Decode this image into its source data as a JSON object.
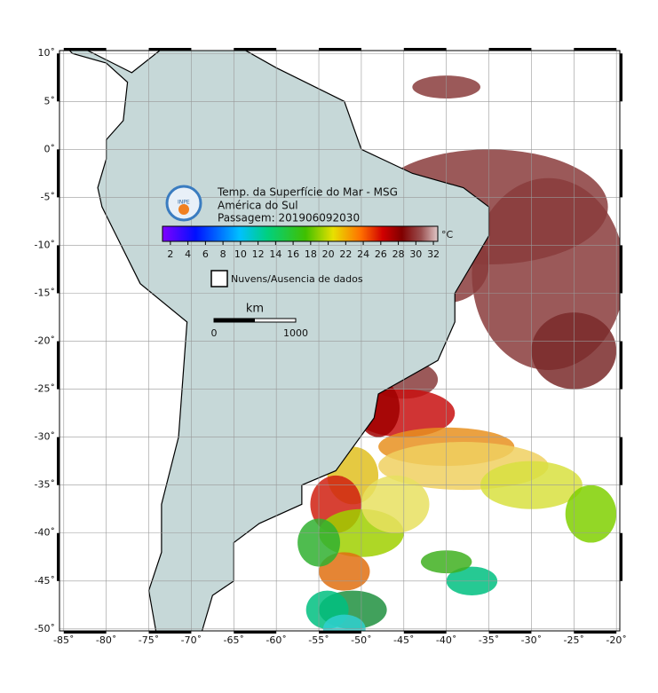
{
  "map": {
    "title": "Temp. da Superfície do Mar - MSG",
    "region": "América do Sul",
    "pass": "Passagem: 201906092030",
    "logo": "INPE",
    "xlim": [
      -85.5,
      -19.6
    ],
    "ylim": [
      -50.2,
      10.3
    ],
    "xticks": [
      {
        "value": -85,
        "label": "-85˚"
      },
      {
        "value": -80,
        "label": "-80˚"
      },
      {
        "value": -75,
        "label": "-75˚"
      },
      {
        "value": -70,
        "label": "-70˚"
      },
      {
        "value": -65,
        "label": "-65˚"
      },
      {
        "value": -60,
        "label": "-60˚"
      },
      {
        "value": -55,
        "label": "-55˚"
      },
      {
        "value": -50,
        "label": "-50˚"
      },
      {
        "value": -45,
        "label": "-45˚"
      },
      {
        "value": -40,
        "label": "-40˚"
      },
      {
        "value": -35,
        "label": "-35˚"
      },
      {
        "value": -30,
        "label": "-30˚"
      },
      {
        "value": -25,
        "label": "-25˚"
      },
      {
        "value": -20,
        "label": "-20˚"
      }
    ],
    "yticks": [
      {
        "value": 10,
        "label": "10˚"
      },
      {
        "value": 5,
        "label": "5˚"
      },
      {
        "value": 0,
        "label": "0˚"
      },
      {
        "value": -5,
        "label": "-5˚"
      },
      {
        "value": -10,
        "label": "-10˚"
      },
      {
        "value": -15,
        "label": "-15˚"
      },
      {
        "value": -20,
        "label": "-20˚"
      },
      {
        "value": -25,
        "label": "-25˚"
      },
      {
        "value": -30,
        "label": "-30˚"
      },
      {
        "value": -35,
        "label": "-35˚"
      },
      {
        "value": -40,
        "label": "-40˚"
      },
      {
        "value": -45,
        "label": "-45˚"
      },
      {
        "value": -50,
        "label": "-50˚"
      }
    ],
    "grid": true,
    "colorbar": {
      "lim": [
        1.1,
        32.5
      ],
      "ticks": [
        2,
        4,
        6,
        8,
        10,
        12,
        14,
        16,
        18,
        20,
        22,
        24,
        26,
        28,
        30,
        32
      ],
      "unit": "°C"
    },
    "legend": "Nuvens/Ausencia de dados",
    "scale": {
      "unit": "km",
      "labels": [
        "0",
        "1000"
      ]
    }
  }
}
